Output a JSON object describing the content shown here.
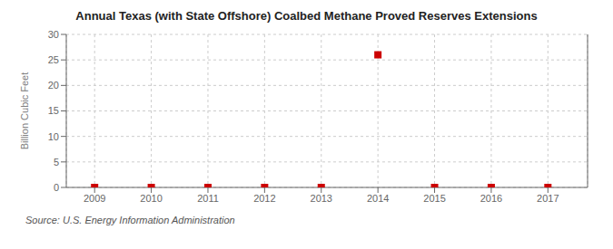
{
  "chart_data": {
    "type": "scatter",
    "title": "Annual Texas (with State Offshore) Coalbed Methane Proved Reserves Extensions",
    "ylabel": "Billion Cubic Feet",
    "annotations": [
      "Source: U.S. Energy Information Administration"
    ],
    "x": [
      2009,
      2010,
      2011,
      2012,
      2013,
      2014,
      2015,
      2016,
      2017
    ],
    "values": [
      0,
      0,
      0,
      0,
      0,
      26,
      0,
      0,
      0
    ],
    "xlim": [
      2008.5,
      2017.7
    ],
    "ylim": [
      0,
      30
    ],
    "xticks": [
      2009,
      2010,
      2011,
      2012,
      2013,
      2014,
      2015,
      2016,
      2017
    ],
    "yticks": [
      0,
      5,
      10,
      15,
      20,
      25,
      30
    ],
    "grid": true,
    "color": "#cc0000",
    "marker": "square"
  }
}
